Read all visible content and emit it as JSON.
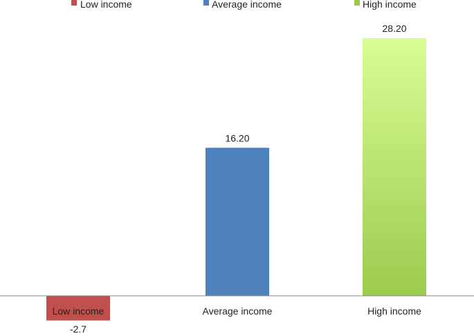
{
  "chart_data": {
    "type": "bar",
    "categories": [
      "Low income",
      "Average income",
      "High income"
    ],
    "series": [
      {
        "name": "Low income",
        "values": [
          -2.7,
          null,
          null
        ],
        "color": "#c0504d"
      },
      {
        "name": "Average income",
        "values": [
          null,
          16.2,
          null
        ],
        "color": "#4f81bd"
      },
      {
        "name": "High income",
        "values": [
          null,
          null,
          28.2
        ],
        "color": "#9bcb4e"
      }
    ],
    "values": [
      -2.7,
      16.2,
      28.2
    ],
    "data_labels": [
      "-2.7",
      "16.20",
      "28.20"
    ],
    "colors": [
      "#c0504d",
      "#4f81bd",
      "#9bcb4e"
    ],
    "legend": {
      "position": "top",
      "entries": [
        "Low income",
        "Average income",
        "High income"
      ]
    },
    "title": "",
    "xlabel": "",
    "ylabel": "",
    "ylim": [
      -4,
      30
    ],
    "grid": false
  }
}
